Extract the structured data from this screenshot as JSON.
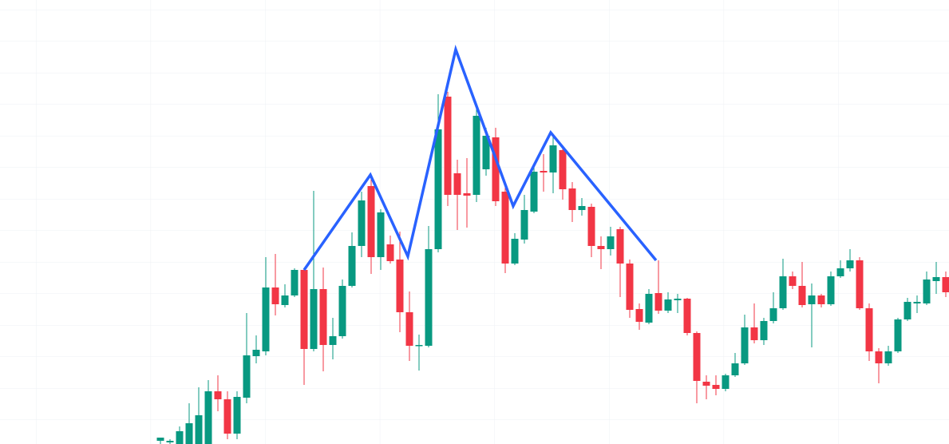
{
  "chart_data": {
    "type": "candlestick",
    "up_color": "#089981",
    "down_color": "#f23645",
    "ylim": [
      0,
      556
    ],
    "grid": true,
    "open": [
      4,
      2,
      0,
      0,
      0,
      0,
      66,
      56,
      13,
      58,
      110,
      116,
      196,
      174,
      186,
      218,
      119,
      194,
      124,
      135,
      198,
      248,
      323,
      234,
      250,
      231,
      165,
      123,
      123,
      244,
      435,
      339,
      314,
      312,
      344,
      384,
      316,
      226,
      256,
      291,
      342,
      340,
      368,
      320,
      293,
      297,
      248,
      244,
      269,
      226,
      169,
      152,
      189,
      167,
      180,
      182,
      139,
      78,
      74,
      69,
      86,
      101,
      146,
      130,
      154,
      170,
      210,
      198,
      175,
      186,
      175,
      210,
      220,
      230,
      170,
      116,
      101,
      116,
      156,
      176,
      176,
      204,
      209
    ],
    "high": [
      8,
      6,
      22,
      51,
      71,
      80,
      86,
      66,
      66,
      164,
      136,
      234,
      238,
      200,
      220,
      220,
      317,
      221,
      158,
      206,
      265,
      316,
      332,
      294,
      261,
      266,
      191,
      137,
      273,
      438,
      441,
      356,
      358,
      424,
      396,
      396,
      326,
      264,
      312,
      349,
      363,
      388,
      370,
      328,
      308,
      301,
      260,
      272,
      272,
      231,
      176,
      194,
      230,
      190,
      188,
      183,
      141,
      86,
      86,
      88,
      114,
      162,
      176,
      158,
      190,
      232,
      216,
      228,
      201,
      188,
      216,
      230,
      244,
      234,
      176,
      120,
      123,
      158,
      183,
      186,
      216,
      228,
      216
    ],
    "low": [
      0,
      0,
      0,
      0,
      0,
      0,
      41,
      6,
      6,
      51,
      101,
      111,
      161,
      171,
      184,
      74,
      116,
      91,
      106,
      132,
      196,
      234,
      213,
      218,
      226,
      140,
      104,
      92,
      121,
      240,
      298,
      268,
      271,
      303,
      336,
      298,
      214,
      224,
      251,
      289,
      316,
      314,
      306,
      278,
      286,
      234,
      219,
      236,
      184,
      158,
      143,
      150,
      163,
      164,
      164,
      136,
      51,
      56,
      61,
      66,
      84,
      99,
      126,
      124,
      151,
      168,
      194,
      171,
      121,
      171,
      173,
      208,
      216,
      168,
      104,
      76,
      98,
      114,
      154,
      164,
      174,
      188,
      184
    ],
    "close": [
      8,
      4,
      16,
      26,
      36,
      66,
      56,
      13,
      59,
      111,
      118,
      196,
      175,
      186,
      218,
      119,
      194,
      124,
      135,
      198,
      248,
      305,
      234,
      290,
      229,
      165,
      123,
      124,
      244,
      394,
      312,
      312,
      311,
      411,
      386,
      304,
      226,
      257,
      293,
      341,
      340,
      374,
      319,
      293,
      298,
      248,
      244,
      260,
      226,
      168,
      153,
      188,
      167,
      181,
      182,
      139,
      79,
      73,
      69,
      86,
      101,
      146,
      130,
      154,
      170,
      210,
      198,
      174,
      186,
      175,
      210,
      220,
      230,
      170,
      116,
      101,
      116,
      156,
      178,
      178,
      206,
      209,
      190
    ],
    "pattern": {
      "color": "#2962ff",
      "x": [
        15,
        21.92,
        25.83,
        30.83,
        36.83,
        40.75,
        51.75
      ],
      "values": [
        218,
        337,
        235,
        494,
        298,
        390,
        230
      ]
    }
  }
}
